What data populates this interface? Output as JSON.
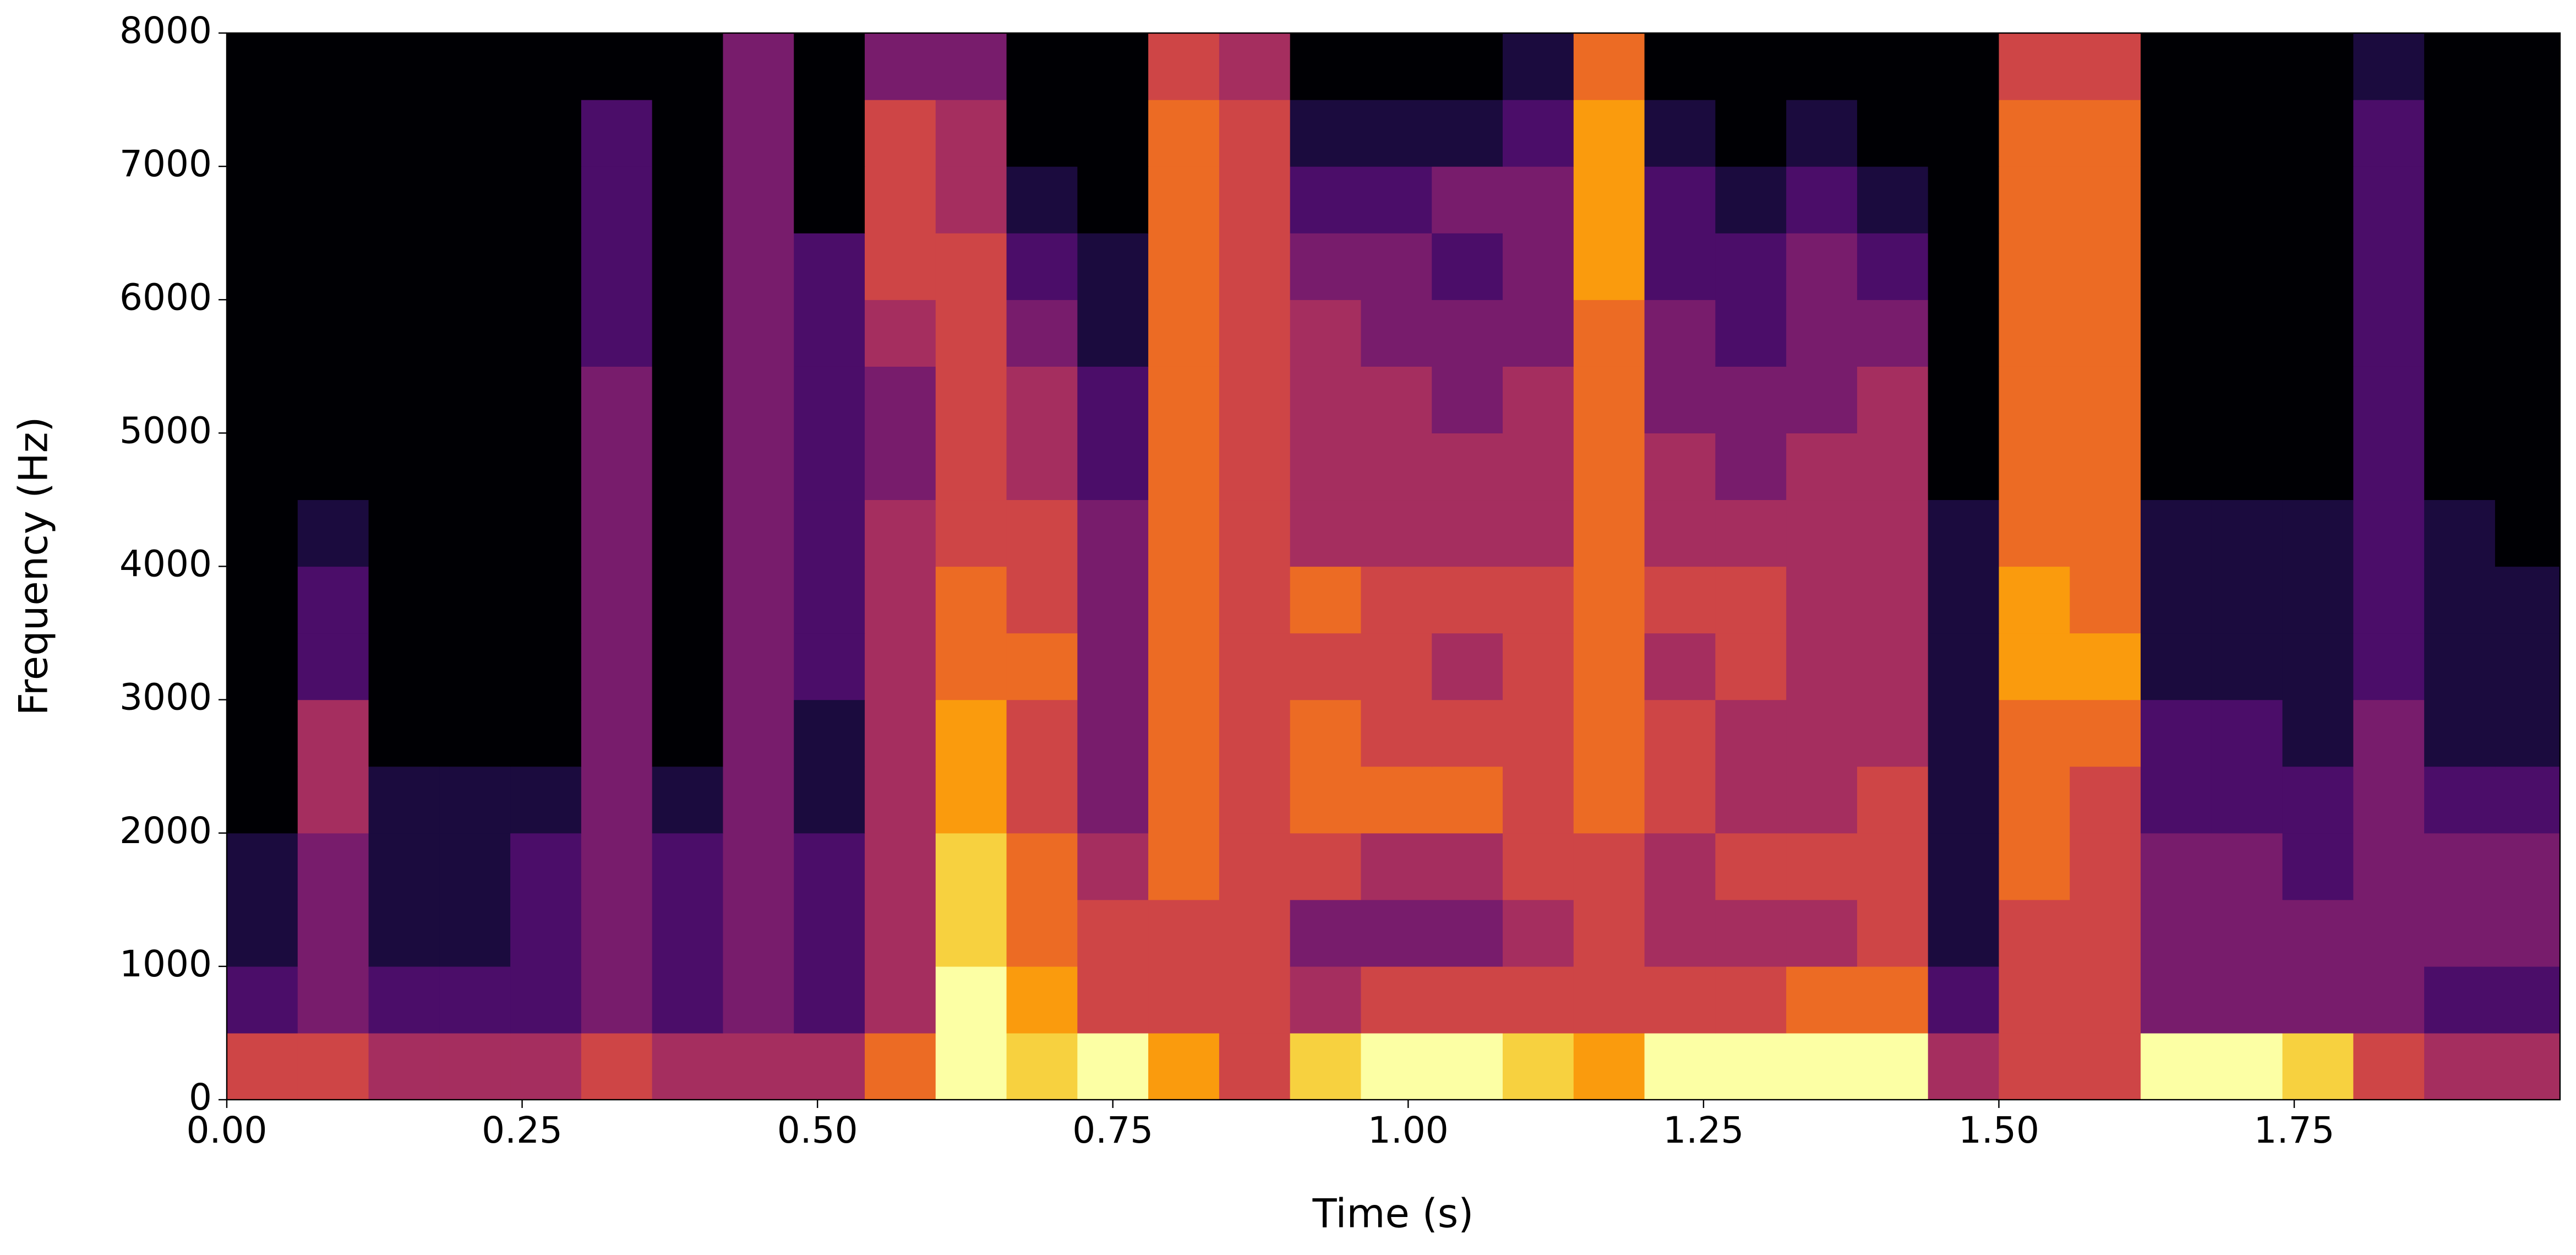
{
  "chart_data": {
    "type": "heatmap",
    "colormap": "inferno",
    "x_label": "Time (s)",
    "y_label": "Frequency (Hz)",
    "xlim": [
      0,
      1.975
    ],
    "ylim": [
      0,
      8000
    ],
    "xticks": [
      {
        "value": 0,
        "label": "0.00"
      },
      0.25,
      {
        "value": 0.5,
        "label": "0.50"
      },
      0.75,
      {
        "value": 1,
        "label": "1.00"
      },
      1.25,
      {
        "value": 1.5,
        "label": "1.50"
      },
      1.75
    ],
    "yticks": [
      0,
      1000,
      2000,
      3000,
      4000,
      5000,
      6000,
      7000,
      8000
    ],
    "x": [
      0.03,
      0.09,
      0.15,
      0.21,
      0.27,
      0.33,
      0.39,
      0.45,
      0.51,
      0.57,
      0.63,
      0.69,
      0.75,
      0.81,
      0.87,
      0.93,
      0.99,
      1.05,
      1.11,
      1.17,
      1.23,
      1.29,
      1.35,
      1.41,
      1.47,
      1.53,
      1.59,
      1.65,
      1.71,
      1.77,
      1.83,
      1.89,
      1.95
    ],
    "y": [
      250,
      750,
      1250,
      1750,
      2250,
      2750,
      3250,
      3750,
      4250,
      4750,
      5250,
      5750,
      6250,
      6750,
      7250,
      7750
    ],
    "z": [
      [
        5,
        5,
        4,
        4,
        4,
        5,
        4,
        4,
        4,
        6,
        9,
        8,
        9,
        7,
        5,
        8,
        9,
        9,
        8,
        7,
        9,
        9,
        9,
        9,
        4,
        5,
        5,
        9,
        9,
        8,
        5,
        4,
        4
      ],
      [
        2,
        3,
        2,
        2,
        2,
        3,
        2,
        3,
        2,
        4,
        9,
        7,
        5,
        5,
        5,
        4,
        5,
        5,
        5,
        5,
        5,
        5,
        6,
        6,
        2,
        5,
        5,
        3,
        3,
        3,
        3,
        2,
        2
      ],
      [
        1,
        3,
        1,
        1,
        2,
        3,
        2,
        3,
        2,
        4,
        8,
        6,
        5,
        5,
        5,
        3,
        3,
        3,
        4,
        5,
        4,
        4,
        4,
        5,
        1,
        5,
        5,
        3,
        3,
        3,
        3,
        3,
        3
      ],
      [
        1,
        3,
        1,
        1,
        2,
        3,
        2,
        3,
        2,
        4,
        8,
        6,
        4,
        6,
        5,
        5,
        4,
        4,
        5,
        5,
        4,
        5,
        5,
        5,
        1,
        6,
        5,
        3,
        3,
        2,
        3,
        3,
        3
      ],
      [
        0,
        4,
        1,
        1,
        1,
        3,
        1,
        3,
        1,
        4,
        7,
        5,
        3,
        6,
        5,
        6,
        6,
        6,
        5,
        6,
        5,
        4,
        4,
        5,
        1,
        6,
        5,
        2,
        2,
        2,
        3,
        2,
        2
      ],
      [
        0,
        4,
        0,
        0,
        0,
        3,
        0,
        3,
        1,
        4,
        7,
        5,
        3,
        6,
        5,
        6,
        5,
        5,
        5,
        6,
        5,
        4,
        4,
        4,
        1,
        6,
        6,
        2,
        2,
        1,
        3,
        1,
        1
      ],
      [
        0,
        2,
        0,
        0,
        0,
        3,
        0,
        3,
        2,
        4,
        6,
        6,
        3,
        6,
        5,
        5,
        5,
        4,
        5,
        6,
        4,
        5,
        4,
        4,
        1,
        7,
        7,
        1,
        1,
        1,
        2,
        1,
        1
      ],
      [
        0,
        2,
        0,
        0,
        0,
        3,
        0,
        3,
        2,
        4,
        6,
        5,
        3,
        6,
        5,
        6,
        5,
        5,
        5,
        6,
        5,
        5,
        4,
        4,
        1,
        7,
        6,
        1,
        1,
        1,
        2,
        1,
        1
      ],
      [
        0,
        1,
        0,
        0,
        0,
        3,
        0,
        3,
        2,
        4,
        5,
        5,
        3,
        6,
        5,
        4,
        4,
        4,
        4,
        6,
        4,
        4,
        4,
        4,
        1,
        6,
        6,
        1,
        1,
        1,
        2,
        1,
        0
      ],
      [
        0,
        0,
        0,
        0,
        0,
        3,
        0,
        3,
        2,
        3,
        5,
        4,
        2,
        6,
        5,
        4,
        4,
        4,
        4,
        6,
        4,
        3,
        4,
        4,
        0,
        6,
        6,
        0,
        0,
        0,
        2,
        0,
        0
      ],
      [
        0,
        0,
        0,
        0,
        0,
        3,
        0,
        3,
        2,
        3,
        5,
        4,
        2,
        6,
        5,
        4,
        4,
        3,
        4,
        6,
        3,
        3,
        3,
        4,
        0,
        6,
        6,
        0,
        0,
        0,
        2,
        0,
        0
      ],
      [
        0,
        0,
        0,
        0,
        0,
        2,
        0,
        3,
        2,
        4,
        5,
        3,
        1,
        6,
        5,
        4,
        3,
        3,
        3,
        6,
        3,
        2,
        3,
        3,
        0,
        6,
        6,
        0,
        0,
        0,
        2,
        0,
        0
      ],
      [
        0,
        0,
        0,
        0,
        0,
        2,
        0,
        3,
        2,
        5,
        5,
        2,
        1,
        6,
        5,
        3,
        3,
        2,
        3,
        7,
        2,
        2,
        3,
        2,
        0,
        6,
        6,
        0,
        0,
        0,
        2,
        0,
        0
      ],
      [
        0,
        0,
        0,
        0,
        0,
        2,
        0,
        3,
        0,
        5,
        4,
        1,
        0,
        6,
        5,
        2,
        2,
        3,
        3,
        7,
        2,
        1,
        2,
        1,
        0,
        6,
        6,
        0,
        0,
        0,
        2,
        0,
        0
      ],
      [
        0,
        0,
        0,
        0,
        0,
        2,
        0,
        3,
        0,
        5,
        4,
        0,
        0,
        6,
        5,
        1,
        1,
        1,
        2,
        7,
        1,
        0,
        1,
        0,
        0,
        6,
        6,
        0,
        0,
        0,
        2,
        0,
        0
      ],
      [
        0,
        0,
        0,
        0,
        0,
        0,
        0,
        3,
        0,
        3,
        3,
        0,
        0,
        5,
        4,
        0,
        0,
        0,
        1,
        6,
        0,
        0,
        0,
        0,
        0,
        5,
        5,
        0,
        0,
        0,
        1,
        0,
        0
      ]
    ]
  }
}
